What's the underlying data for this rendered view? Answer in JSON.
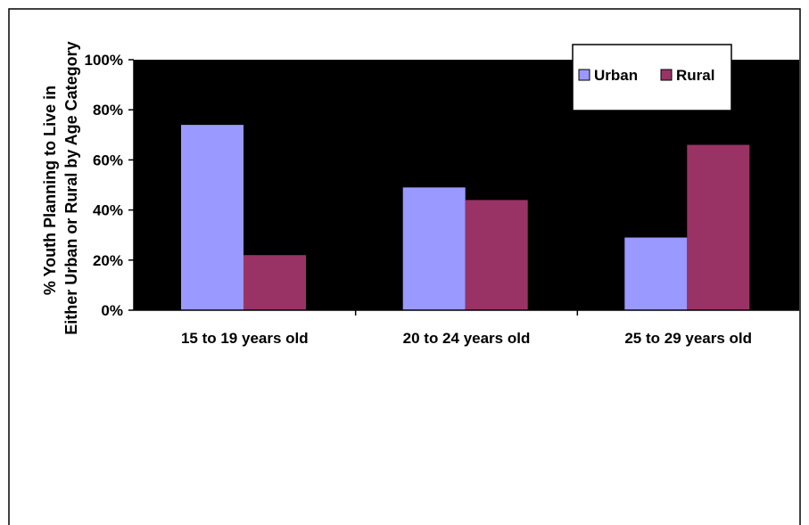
{
  "chart_data": {
    "type": "bar",
    "categories": [
      "15 to 19 years old",
      "20 to 24 years old",
      "25 to 29 years old"
    ],
    "series": [
      {
        "name": "Urban",
        "values": [
          74,
          49,
          29
        ],
        "color": "#9999FF"
      },
      {
        "name": "Rural",
        "values": [
          22,
          44,
          66
        ],
        "color": "#993366"
      }
    ],
    "ylabel_lines": [
      "% Youth Planning to Live in",
      "Either Urban or Rural by  Age Category"
    ],
    "ylim": [
      0,
      100
    ],
    "yticks": [
      0,
      20,
      40,
      60,
      80,
      100
    ],
    "ytick_labels": [
      "0%",
      "20%",
      "40%",
      "60%",
      "80%",
      "100%"
    ],
    "plot_background": "#000000",
    "grid": false,
    "legend_position": "top-right"
  }
}
